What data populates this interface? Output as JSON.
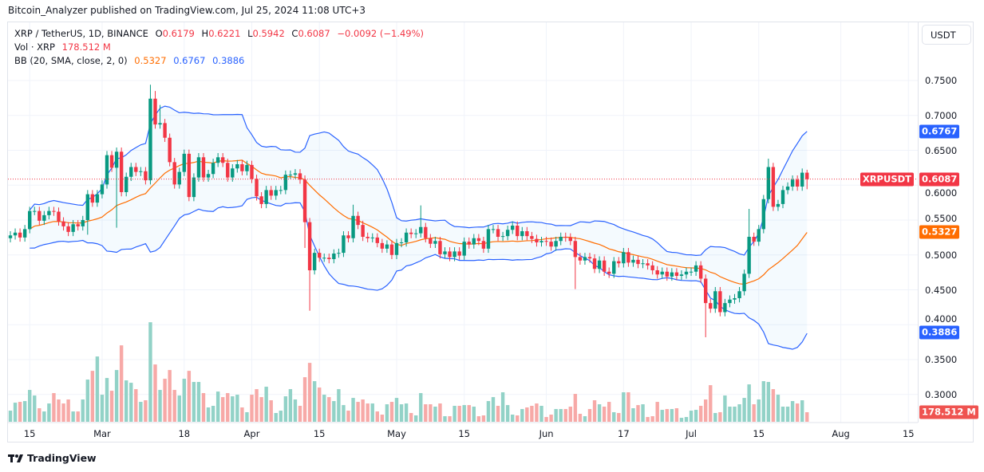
{
  "publisher_line": "Bitcoin_Analyzer published on TradingView.com, Jul 25, 2024 11:08 UTC+3",
  "legend": {
    "symbol": "XRP / TetherUS, 1D, BINANCE",
    "o_label": "O",
    "o": "0.6179",
    "h_label": "H",
    "h": "0.6221",
    "l_label": "L",
    "l": "0.5942",
    "c_label": "C",
    "c": "0.6087",
    "change": "−0.0092 (−1.49%)",
    "vol_label": "Vol · XRP",
    "vol": "178.512 M",
    "bb_label": "BB (20, SMA, close, 2, 0)",
    "bb_basis": "0.5327",
    "bb_upper": "0.6767",
    "bb_lower": "0.3886"
  },
  "currency_button": "USDT",
  "price_tag": {
    "symbol": "XRPUSDT",
    "value": "0.6087",
    "price": 0.6087
  },
  "axis_tags": [
    {
      "text": "0.6767",
      "price": 0.6767,
      "color": "#2962FF"
    },
    {
      "text": "0.5327",
      "price": 0.5327,
      "color": "#FF6D00"
    },
    {
      "text": "0.3886",
      "price": 0.3886,
      "color": "#2962FF"
    }
  ],
  "volume_tag": {
    "text": "178.512 M",
    "color": "#EF5350"
  },
  "footer_logo": "TradingView",
  "colors": {
    "up": "#089981",
    "down": "#F23645",
    "bb_band": "#2962FF",
    "bb_basis": "#FF6D00",
    "vol_up": "#92D2C7",
    "vol_down": "#F7A9A7"
  },
  "chart_data": {
    "type": "candlestick",
    "interval": "1D",
    "x_start": "2024-02-11",
    "first_open": 0.524,
    "close": [
      0.528,
      0.532,
      0.525,
      0.537,
      0.563,
      0.563,
      0.549,
      0.557,
      0.563,
      0.562,
      0.548,
      0.541,
      0.533,
      0.544,
      0.541,
      0.55,
      0.587,
      0.575,
      0.587,
      0.601,
      0.643,
      0.625,
      0.648,
      0.59,
      0.612,
      0.626,
      0.619,
      0.62,
      0.607,
      0.724,
      0.687,
      0.689,
      0.668,
      0.633,
      0.601,
      0.619,
      0.645,
      0.583,
      0.611,
      0.64,
      0.611,
      0.616,
      0.632,
      0.64,
      0.632,
      0.611,
      0.624,
      0.63,
      0.62,
      0.629,
      0.609,
      0.584,
      0.573,
      0.593,
      0.585,
      0.593,
      0.593,
      0.615,
      0.615,
      0.617,
      0.608,
      0.547,
      0.478,
      0.503,
      0.496,
      0.496,
      0.494,
      0.502,
      0.503,
      0.528,
      0.524,
      0.556,
      0.543,
      0.526,
      0.524,
      0.525,
      0.517,
      0.509,
      0.515,
      0.5,
      0.517,
      0.518,
      0.532,
      0.53,
      0.531,
      0.54,
      0.524,
      0.516,
      0.52,
      0.501,
      0.505,
      0.497,
      0.505,
      0.499,
      0.519,
      0.515,
      0.524,
      0.52,
      0.509,
      0.537,
      0.537,
      0.526,
      0.527,
      0.536,
      0.542,
      0.527,
      0.534,
      0.527,
      0.523,
      0.518,
      0.52,
      0.519,
      0.512,
      0.52,
      0.526,
      0.525,
      0.52,
      0.497,
      0.492,
      0.497,
      0.495,
      0.48,
      0.492,
      0.476,
      0.473,
      0.491,
      0.488,
      0.504,
      0.489,
      0.493,
      0.487,
      0.488,
      0.485,
      0.478,
      0.472,
      0.476,
      0.469,
      0.475,
      0.47,
      0.472,
      0.476,
      0.476,
      0.485,
      0.466,
      0.431,
      0.423,
      0.448,
      0.418,
      0.431,
      0.436,
      0.438,
      0.448,
      0.473,
      0.526,
      0.519,
      0.537,
      0.58,
      0.626,
      0.569,
      0.573,
      0.593,
      0.598,
      0.608,
      0.598,
      0.6179,
      0.6087
    ],
    "wick_extremes": [
      {
        "date": "2024-03-11",
        "high": 0.744
      },
      {
        "date": "2024-03-12",
        "high": 0.735
      },
      {
        "date": "2024-03-13",
        "high": 0.715
      },
      {
        "date": "2024-03-04",
        "low": 0.539
      },
      {
        "date": "2024-02-27",
        "low": 0.529
      },
      {
        "date": "2024-04-12",
        "low": 0.51
      },
      {
        "date": "2024-04-13",
        "low": 0.42
      },
      {
        "date": "2024-04-22",
        "high": 0.572
      },
      {
        "date": "2024-05-06",
        "high": 0.571
      },
      {
        "date": "2024-06-07",
        "low": 0.451
      },
      {
        "date": "2024-07-04",
        "low": 0.382
      },
      {
        "date": "2024-07-13",
        "high": 0.566
      },
      {
        "date": "2024-07-17",
        "high": 0.638
      },
      {
        "date": "2024-07-25",
        "high": 0.6221,
        "low": 0.5942
      }
    ],
    "volume_millions": [
      208,
      357,
      372,
      387,
      595,
      491,
      253,
      193,
      342,
      536,
      417,
      342,
      417,
      193,
      193,
      417,
      789,
      952,
      1220,
      506,
      818,
      580,
      967,
      1428,
      774,
      729,
      610,
      372,
      402,
      1860,
      1071,
      595,
      804,
      967,
      595,
      491,
      804,
      952,
      744,
      744,
      536,
      268,
      298,
      565,
      461,
      536,
      476,
      506,
      268,
      179,
      506,
      610,
      461,
      655,
      402,
      164,
      208,
      476,
      610,
      417,
      298,
      833,
      1101,
      759,
      640,
      506,
      461,
      387,
      610,
      312,
      208,
      446,
      372,
      417,
      342,
      342,
      193,
      134,
      327,
      372,
      446,
      327,
      342,
      164,
      119,
      536,
      327,
      327,
      283,
      342,
      104,
      104,
      298,
      298,
      312,
      312,
      283,
      104,
      119,
      387,
      461,
      298,
      551,
      312,
      134,
      119,
      238,
      268,
      298,
      342,
      298,
      89,
      134,
      238,
      238,
      238,
      283,
      521,
      149,
      104,
      238,
      402,
      327,
      283,
      372,
      179,
      164,
      551,
      551,
      253,
      312,
      327,
      89,
      104,
      372,
      223,
      238,
      238,
      253,
      74,
      89,
      208,
      223,
      298,
      417,
      684,
      164,
      179,
      491,
      283,
      283,
      327,
      446,
      699,
      327,
      417,
      759,
      744,
      610,
      506,
      283,
      283,
      387,
      342,
      402,
      178.512
    ],
    "bollinger": {
      "length": 20,
      "ma": "SMA",
      "source": "close",
      "stdev": 2,
      "offset": 0
    },
    "y_ticks": [
      "0.7500",
      "0.7000",
      "0.6500",
      "0.6000",
      "0.5500",
      "0.5000",
      "0.4500",
      "0.4000",
      "0.3500",
      "0.3000"
    ],
    "x_ticks": [
      {
        "date": "2024-02-15",
        "label": "15"
      },
      {
        "date": "2024-03-01",
        "label": "Mar"
      },
      {
        "date": "2024-03-18",
        "label": "18"
      },
      {
        "date": "2024-04-01",
        "label": "Apr"
      },
      {
        "date": "2024-04-15",
        "label": "15"
      },
      {
        "date": "2024-05-01",
        "label": "May"
      },
      {
        "date": "2024-05-15",
        "label": "15"
      },
      {
        "date": "2024-06-01",
        "label": "Jun"
      },
      {
        "date": "2024-06-17",
        "label": "17"
      },
      {
        "date": "2024-07-01",
        "label": "Jul"
      },
      {
        "date": "2024-07-15",
        "label": "15"
      },
      {
        "date": "2024-08-01",
        "label": "Aug"
      },
      {
        "date": "2024-08-15",
        "label": "15"
      }
    ],
    "y_unit": "USDT"
  }
}
